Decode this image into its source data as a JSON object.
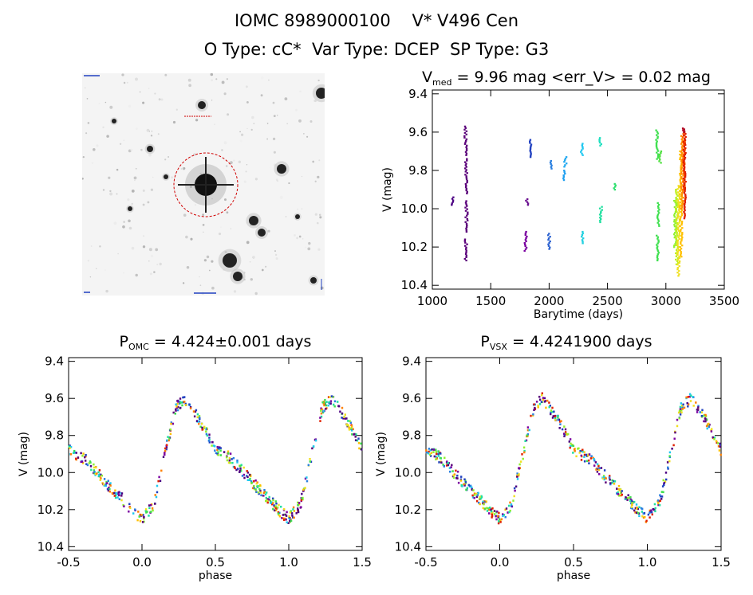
{
  "header": {
    "line1": "IOMC 8989000100    V* V496 Cen",
    "line2": "O Type: cC*  Var Type: DCEP  SP Type: G3"
  },
  "lightcurve": {
    "title_prefix": "V",
    "title_sub": "med",
    "title_rest": " = 9.96 mag <err_V> = 0.02 mag"
  },
  "phase_omc": {
    "title_prefix": "P",
    "title_sub": "OMC",
    "title_rest": " = 4.424±0.001 days"
  },
  "phase_vsx": {
    "title_prefix": "P",
    "title_sub": "VSX",
    "title_rest": " = 4.4241900 days"
  },
  "chart_data": [
    {
      "type": "scatter",
      "name": "lightcurve",
      "xlabel": "Barytime (days)",
      "ylabel": "V (mag)",
      "xlim": [
        1000,
        3500
      ],
      "ylim": [
        10.42,
        9.38
      ],
      "xticks": [
        1000,
        1500,
        2000,
        2500,
        3000,
        3500
      ],
      "yticks": [
        9.4,
        9.6,
        9.8,
        10.0,
        10.2,
        10.4
      ],
      "segments": [
        {
          "x": 1175,
          "y0": 9.94,
          "y1": 9.98,
          "color": "#4b0082"
        },
        {
          "x": 1285,
          "y0": 9.57,
          "y1": 9.72,
          "color": "#5a007a"
        },
        {
          "x": 1290,
          "y0": 9.74,
          "y1": 9.92,
          "color": "#5a007a"
        },
        {
          "x": 1293,
          "y0": 9.96,
          "y1": 10.12,
          "color": "#5a007a"
        },
        {
          "x": 1288,
          "y0": 10.16,
          "y1": 10.27,
          "color": "#5a007a"
        },
        {
          "x": 1800,
          "y0": 10.12,
          "y1": 10.22,
          "color": "#7a00a0"
        },
        {
          "x": 1812,
          "y0": 9.95,
          "y1": 9.98,
          "color": "#6a1090"
        },
        {
          "x": 1840,
          "y0": 9.64,
          "y1": 9.73,
          "color": "#2040c0"
        },
        {
          "x": 2000,
          "y0": 10.13,
          "y1": 10.21,
          "color": "#2a60d0"
        },
        {
          "x": 2015,
          "y0": 9.75,
          "y1": 9.79,
          "color": "#2a80e0"
        },
        {
          "x": 2130,
          "y0": 9.8,
          "y1": 9.85,
          "color": "#20a0f0"
        },
        {
          "x": 2140,
          "y0": 9.73,
          "y1": 9.78,
          "color": "#20a8f0"
        },
        {
          "x": 2280,
          "y0": 9.66,
          "y1": 9.72,
          "color": "#20c8f0"
        },
        {
          "x": 2285,
          "y0": 10.12,
          "y1": 10.18,
          "color": "#20d0e0"
        },
        {
          "x": 2440,
          "y0": 9.63,
          "y1": 9.67,
          "color": "#20e0c0"
        },
        {
          "x": 2445,
          "y0": 9.99,
          "y1": 10.07,
          "color": "#20e0a0"
        },
        {
          "x": 2560,
          "y0": 9.87,
          "y1": 9.9,
          "color": "#30e070"
        },
        {
          "x": 2925,
          "y0": 9.59,
          "y1": 9.74,
          "color": "#40e050"
        },
        {
          "x": 2935,
          "y0": 9.97,
          "y1": 10.09,
          "color": "#40e050"
        },
        {
          "x": 2930,
          "y0": 10.14,
          "y1": 10.27,
          "color": "#40e050"
        },
        {
          "x": 2950,
          "y0": 9.7,
          "y1": 9.76,
          "color": "#50e040"
        },
        {
          "x": 3080,
          "y0": 9.95,
          "y1": 10.2,
          "color": "#90f030"
        },
        {
          "x": 3095,
          "y0": 9.9,
          "y1": 10.29,
          "color": "#c0f020"
        },
        {
          "x": 3110,
          "y0": 9.88,
          "y1": 10.35,
          "color": "#f0e020"
        },
        {
          "x": 3130,
          "y0": 9.7,
          "y1": 10.25,
          "color": "#ffc000"
        },
        {
          "x": 3140,
          "y0": 9.62,
          "y1": 10.0,
          "color": "#ff9000"
        },
        {
          "x": 3155,
          "y0": 9.6,
          "y1": 9.9,
          "color": "#ff6000"
        },
        {
          "x": 3160,
          "y0": 9.6,
          "y1": 10.05,
          "color": "#e02000"
        },
        {
          "x": 3150,
          "y0": 9.58,
          "y1": 9.6,
          "color": "#b00020"
        }
      ]
    },
    {
      "type": "scatter",
      "name": "phase_omc",
      "xlabel": "phase",
      "ylabel": "V (mag)",
      "xlim": [
        -0.5,
        1.5
      ],
      "ylim": [
        10.42,
        9.38
      ],
      "xticks": [
        -0.5,
        0.0,
        0.5,
        1.0,
        1.5
      ],
      "yticks": [
        9.4,
        9.6,
        9.8,
        10.0,
        10.2,
        10.4
      ],
      "curve": [
        [
          0.0,
          10.25
        ],
        [
          0.08,
          10.17
        ],
        [
          0.13,
          10.0
        ],
        [
          0.18,
          9.82
        ],
        [
          0.23,
          9.65
        ],
        [
          0.29,
          9.6
        ],
        [
          0.34,
          9.65
        ],
        [
          0.42,
          9.75
        ],
        [
          0.5,
          9.88
        ],
        [
          0.6,
          9.92
        ],
        [
          0.68,
          9.99
        ],
        [
          0.76,
          10.06
        ],
        [
          0.85,
          10.13
        ],
        [
          0.93,
          10.2
        ],
        [
          1.0,
          10.25
        ]
      ]
    },
    {
      "type": "scatter",
      "name": "phase_vsx",
      "xlabel": "phase",
      "ylabel": "V (mag)",
      "xlim": [
        -0.5,
        1.5
      ],
      "ylim": [
        10.42,
        9.38
      ],
      "xticks": [
        -0.5,
        0.0,
        0.5,
        1.0,
        1.5
      ],
      "yticks": [
        9.4,
        9.6,
        9.8,
        10.0,
        10.2,
        10.4
      ],
      "curve": [
        [
          0.0,
          10.25
        ],
        [
          0.08,
          10.17
        ],
        [
          0.13,
          10.0
        ],
        [
          0.18,
          9.82
        ],
        [
          0.23,
          9.65
        ],
        [
          0.29,
          9.6
        ],
        [
          0.34,
          9.65
        ],
        [
          0.42,
          9.75
        ],
        [
          0.5,
          9.88
        ],
        [
          0.6,
          9.92
        ],
        [
          0.68,
          9.99
        ],
        [
          0.76,
          10.06
        ],
        [
          0.85,
          10.13
        ],
        [
          0.93,
          10.2
        ],
        [
          1.0,
          10.25
        ]
      ]
    }
  ],
  "palette": [
    "#4b0082",
    "#7a00a0",
    "#2040c0",
    "#2a80e0",
    "#20c8f0",
    "#20e0a0",
    "#40e050",
    "#90f030",
    "#f0e020",
    "#ffc000",
    "#ff8000",
    "#e02000",
    "#5a007a"
  ],
  "sky_image": {
    "background": "#f4f4f4",
    "aperture_color": "#d00000"
  }
}
